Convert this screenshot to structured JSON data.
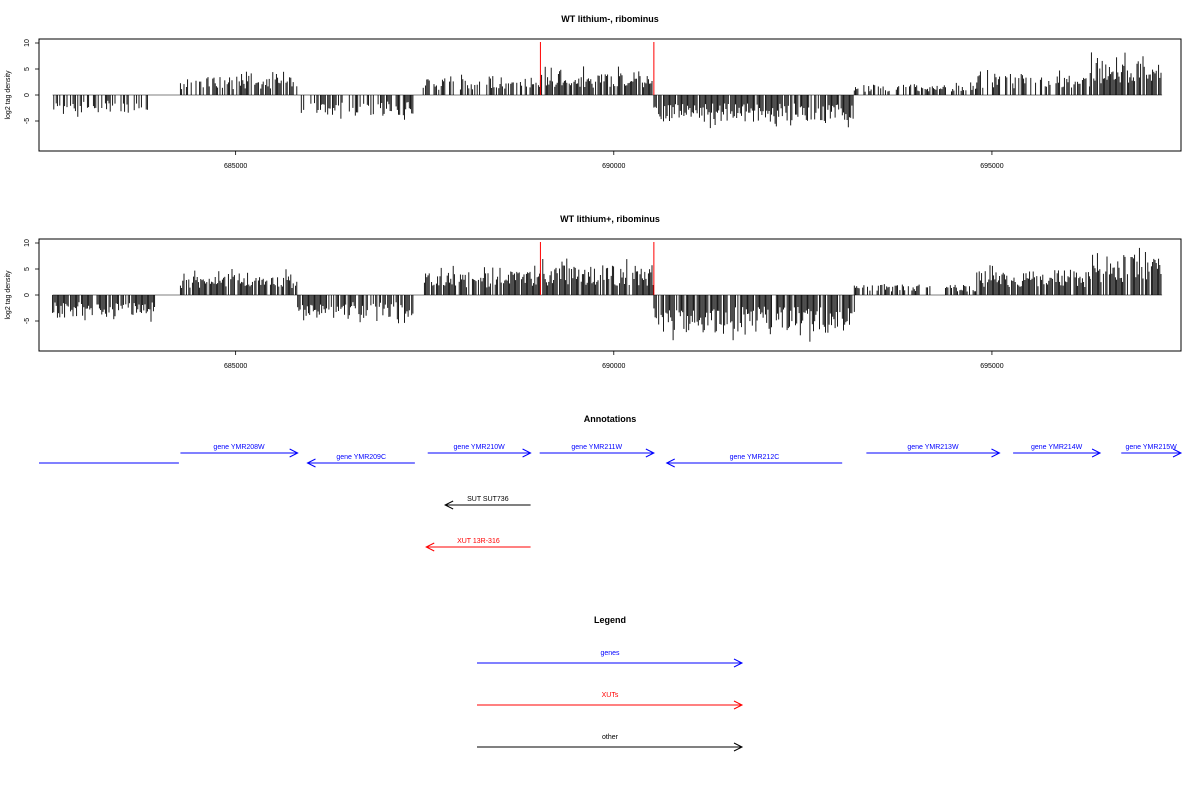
{
  "panels": [
    {
      "title": "WT lithium-, ribominus",
      "ylabel": "log2 tag density"
    },
    {
      "title": "WT lithium+, ribominus",
      "ylabel": "log2 tag density"
    }
  ],
  "annotations_title": "Annotations",
  "legend_title": "Legend",
  "colors": {
    "genes": "#0000ff",
    "xuts": "#ff0000",
    "other": "#000000",
    "marker": "#ff0000"
  },
  "chart_data": [
    {
      "type": "bar",
      "title": "WT lithium-, ribominus",
      "xlabel": "",
      "ylabel": "log2 tag density",
      "xlim": [
        682400,
        697500
      ],
      "ylim": [
        -10,
        10
      ],
      "x_ticks": [
        685000,
        690000,
        695000
      ],
      "x_tick_labels": [
        "685000",
        "690000",
        "695000"
      ],
      "y_ticks": [
        -5,
        0,
        5,
        10
      ],
      "y_tick_labels": [
        "-5",
        "0",
        "5",
        "10"
      ],
      "markers": [
        689030,
        690530
      ],
      "segments": [
        {
          "start": 682580,
          "end": 683950,
          "strand": "minus",
          "max": 4.2
        },
        {
          "start": 684270,
          "end": 685820,
          "strand": "plus",
          "max": 4.5
        },
        {
          "start": 685820,
          "end": 687370,
          "strand": "minus",
          "max": 5.0
        },
        {
          "start": 687480,
          "end": 689030,
          "strand": "plus",
          "max": 4.0
        },
        {
          "start": 689030,
          "end": 690530,
          "strand": "plus",
          "max": 5.5
        },
        {
          "start": 690530,
          "end": 693180,
          "strand": "minus",
          "max": 6.5
        },
        {
          "start": 693180,
          "end": 694800,
          "strand": "plus",
          "max": 2.5
        },
        {
          "start": 694800,
          "end": 696300,
          "strand": "plus",
          "max": 5.0
        },
        {
          "start": 696300,
          "end": 697250,
          "strand": "plus",
          "max": 8.7
        }
      ]
    },
    {
      "type": "bar",
      "title": "WT lithium+, ribominus",
      "xlabel": "",
      "ylabel": "log2 tag density",
      "xlim": [
        682400,
        697500
      ],
      "ylim": [
        -10,
        10
      ],
      "x_ticks": [
        685000,
        690000,
        695000
      ],
      "x_tick_labels": [
        "685000",
        "690000",
        "695000"
      ],
      "y_ticks": [
        -5,
        0,
        5,
        10
      ],
      "y_tick_labels": [
        "-5",
        "0",
        "5",
        "10"
      ],
      "markers": [
        689030,
        690530
      ],
      "segments": [
        {
          "start": 682580,
          "end": 683950,
          "strand": "minus",
          "max": 5.5
        },
        {
          "start": 684270,
          "end": 685820,
          "strand": "plus",
          "max": 5.2
        },
        {
          "start": 685820,
          "end": 687370,
          "strand": "minus",
          "max": 5.5
        },
        {
          "start": 687480,
          "end": 689030,
          "strand": "plus",
          "max": 5.8
        },
        {
          "start": 689030,
          "end": 690530,
          "strand": "plus",
          "max": 7.2
        },
        {
          "start": 690530,
          "end": 693180,
          "strand": "minus",
          "max": 9.0
        },
        {
          "start": 693180,
          "end": 694800,
          "strand": "plus",
          "max": 2.5
        },
        {
          "start": 694800,
          "end": 696300,
          "strand": "plus",
          "max": 6.0
        },
        {
          "start": 696300,
          "end": 697250,
          "strand": "plus",
          "max": 9.3
        }
      ]
    }
  ],
  "annotations": [
    {
      "label": "",
      "type": "gene",
      "start": 682400,
      "end": 684250,
      "strand": "none",
      "row": 1
    },
    {
      "label": "gene YMR208W",
      "type": "gene",
      "start": 684270,
      "end": 685820,
      "strand": "plus",
      "row": 0
    },
    {
      "label": "gene YMR209C",
      "type": "gene",
      "start": 685950,
      "end": 687370,
      "strand": "minus",
      "row": 1
    },
    {
      "label": "gene YMR210W",
      "type": "gene",
      "start": 687540,
      "end": 688900,
      "strand": "plus",
      "row": 0
    },
    {
      "label": "gene YMR211W",
      "type": "gene",
      "start": 689020,
      "end": 690530,
      "strand": "plus",
      "row": 0
    },
    {
      "label": "gene YMR212C",
      "type": "gene",
      "start": 690700,
      "end": 693020,
      "strand": "minus",
      "row": 1
    },
    {
      "label": "gene YMR213W",
      "type": "gene",
      "start": 693340,
      "end": 695100,
      "strand": "plus",
      "row": 0
    },
    {
      "label": "gene YMR214W",
      "type": "gene",
      "start": 695280,
      "end": 696430,
      "strand": "plus",
      "row": 0
    },
    {
      "label": "gene YMR215W",
      "type": "gene",
      "start": 696710,
      "end": 697500,
      "strand": "plus",
      "row": 0
    },
    {
      "label": "SUT SUT736",
      "type": "other",
      "start": 687770,
      "end": 688900,
      "strand": "minus",
      "row": 2
    },
    {
      "label": "XUT 13R-316",
      "type": "xut",
      "start": 687520,
      "end": 688900,
      "strand": "minus",
      "row": 3
    }
  ],
  "legend": [
    {
      "label": "genes",
      "type": "gene"
    },
    {
      "label": "XUTs",
      "type": "xut"
    },
    {
      "label": "other",
      "type": "other"
    }
  ]
}
